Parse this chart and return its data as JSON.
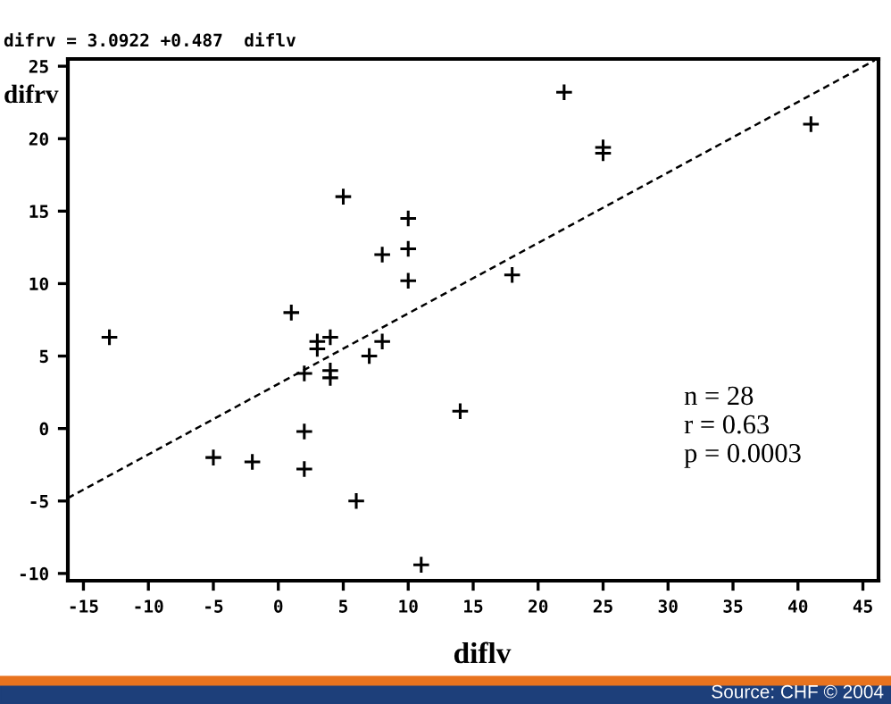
{
  "chart_data": {
    "type": "scatter",
    "title": "difrv = 3.0922 +0.487  diflv",
    "xlabel": "diflv",
    "ylabel": "difrv",
    "xlim": [
      -16.2,
      46.2
    ],
    "ylim": [
      -10.5,
      25.5
    ],
    "xticks": [
      -15,
      -10,
      -5,
      0,
      5,
      10,
      15,
      20,
      25,
      30,
      35,
      40,
      45
    ],
    "yticks": [
      -10,
      -5,
      0,
      5,
      10,
      15,
      20,
      25
    ],
    "grid": false,
    "legend": false,
    "series": [
      {
        "color": "#000000",
        "marker": "cross",
        "x": [
          -13,
          -5,
          -2,
          1,
          2,
          2,
          2,
          3,
          3,
          4,
          4,
          4,
          5,
          6,
          7,
          8,
          8,
          10,
          10,
          10,
          11,
          14,
          18,
          22,
          25,
          25,
          41
        ],
        "values": [
          6.3,
          -2,
          -2.3,
          8,
          3.8,
          -0.2,
          -2.8,
          6,
          5.5,
          6.3,
          4,
          3.5,
          16,
          -5,
          5,
          12,
          6,
          14.5,
          12.4,
          10.2,
          -9.4,
          1.2,
          10.6,
          23.2,
          19.4,
          19,
          21
        ]
      },
      {
        "type": "line",
        "color": "#000000",
        "marker": "none",
        "line_style": "dashed",
        "x": [
          -16.2,
          45.9
        ],
        "values": [
          -4.8,
          25.4
        ]
      }
    ],
    "annotations": [
      "n = 28",
      "r = 0.63",
      "p = 0.0003",
      "Source: CHF © 2004"
    ]
  }
}
